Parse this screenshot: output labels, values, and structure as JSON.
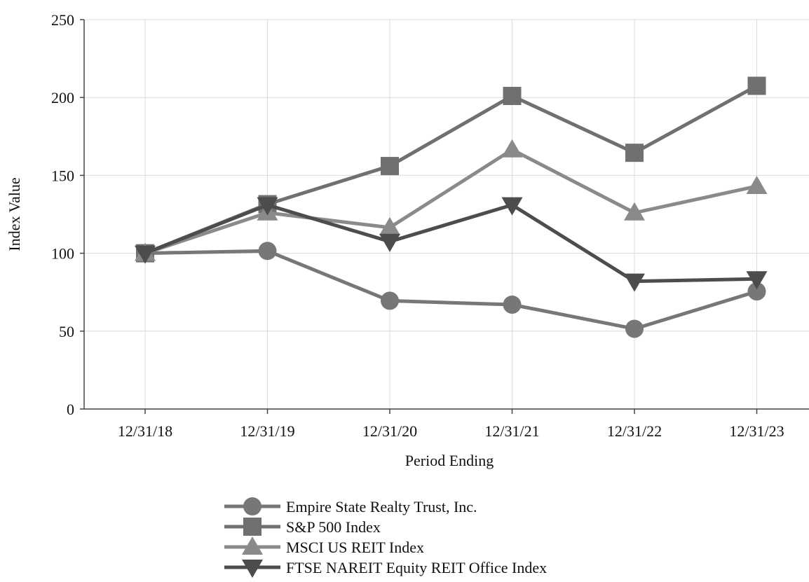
{
  "chart_data": {
    "type": "line",
    "xlabel": "Period Ending",
    "ylabel": "Index Value",
    "categories": [
      "12/31/18",
      "12/31/19",
      "12/31/20",
      "12/31/21",
      "12/31/22",
      "12/31/23"
    ],
    "ylim": [
      0,
      250
    ],
    "yticks": [
      "0",
      "50",
      "100",
      "150",
      "200",
      "250"
    ],
    "grid": true,
    "legend_position": "bottom",
    "series": [
      {
        "name": "Empire State Realty Trust, Inc.",
        "marker": "circle",
        "color": "#777777",
        "values": [
          100,
          101.5,
          69.5,
          67,
          51.5,
          75.5
        ]
      },
      {
        "name": "S&P 500 Index",
        "marker": "square",
        "color": "#707070",
        "values": [
          100,
          131.5,
          156,
          201,
          164.5,
          207.5
        ]
      },
      {
        "name": "MSCI US REIT Index",
        "marker": "triangle-up",
        "color": "#8a8a8a",
        "values": [
          100,
          126,
          116.5,
          166.5,
          126,
          143
        ]
      },
      {
        "name": "FTSE NAREIT Equity REIT Office Index",
        "marker": "triangle-down",
        "color": "#4d4d4d",
        "values": [
          100,
          131,
          107.5,
          131,
          82,
          83.5
        ]
      }
    ]
  }
}
